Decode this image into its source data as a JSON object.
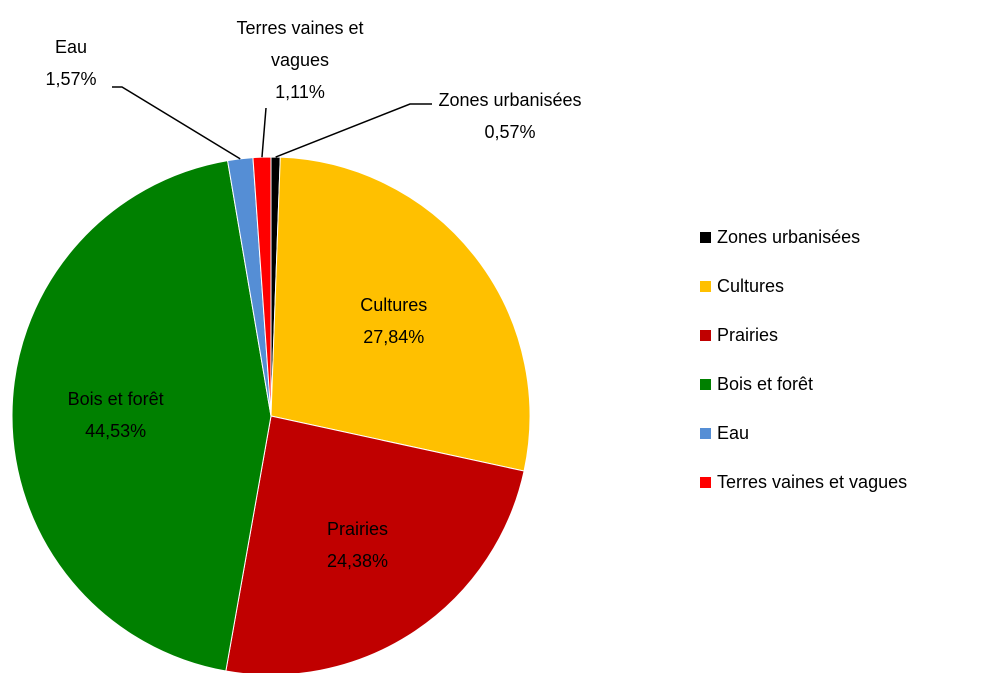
{
  "chart_data": {
    "type": "pie",
    "categories": [
      "Zones urbanisées",
      "Cultures",
      "Prairies",
      "Bois et forêt",
      "Eau",
      "Terres vaines et vagues"
    ],
    "values": [
      0.57,
      27.84,
      24.38,
      44.53,
      1.57,
      1.11
    ],
    "value_labels": [
      "0,57%",
      "27,84%",
      "24,38%",
      "44,53%",
      "1,57%",
      "1,11%"
    ],
    "colors": [
      "#000000",
      "#ffc000",
      "#c00000",
      "#008000",
      "#558ed5",
      "#ff0000"
    ],
    "legend": "right"
  }
}
